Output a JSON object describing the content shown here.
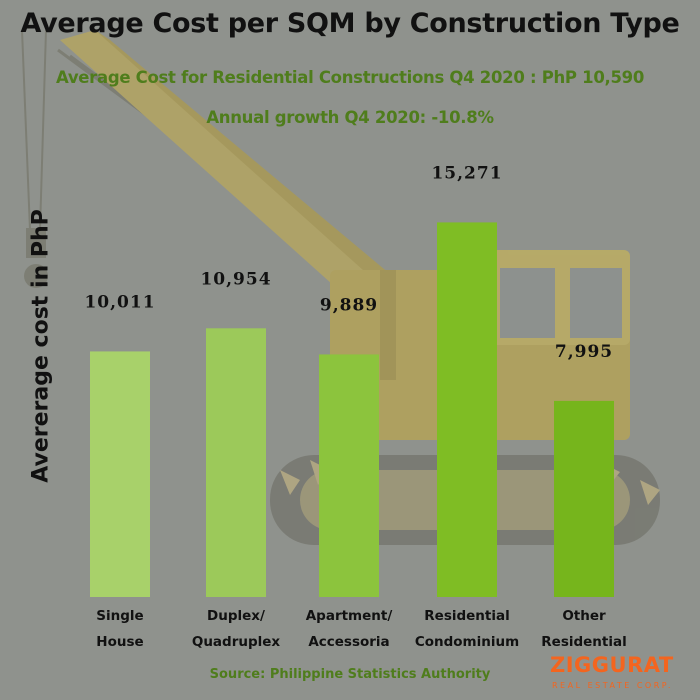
{
  "chart_data": {
    "type": "bar",
    "title": "Average Cost per SQM by Construction Type",
    "subtitles": [
      "Average Cost for Residential Constructions Q4 2020 : PhP 10,590",
      "Annual growth Q4 2020: -10.8%"
    ],
    "ylabel": "Avererage cost in PhP",
    "categories": [
      [
        "Single",
        "House"
      ],
      [
        "Duplex/",
        "Quadruplex"
      ],
      [
        "Apartment/",
        "Accessoria"
      ],
      [
        "Residential",
        "Condominium"
      ],
      [
        "Other",
        "Residential"
      ]
    ],
    "values": [
      10011,
      10954,
      9889,
      15271,
      7995
    ],
    "value_labels": [
      "10,011",
      "10,954",
      "9,889",
      "15,271",
      "7,995"
    ],
    "bar_colors": [
      "#a8d16a",
      "#9cc95a",
      "#8cc43d",
      "#7fbd24",
      "#76b51c"
    ],
    "ylim": [
      0,
      17000
    ],
    "grid": false,
    "legend": "none",
    "source": "Source: Philippine Statistics Authority"
  },
  "brand": {
    "logo_text": "ZIGGURAT",
    "logo_subtext": "REAL ESTATE CORP.",
    "accent_color": "#f3651f"
  },
  "colors": {
    "background": "#8f928d",
    "subtitle_green": "#4f7d1c"
  }
}
